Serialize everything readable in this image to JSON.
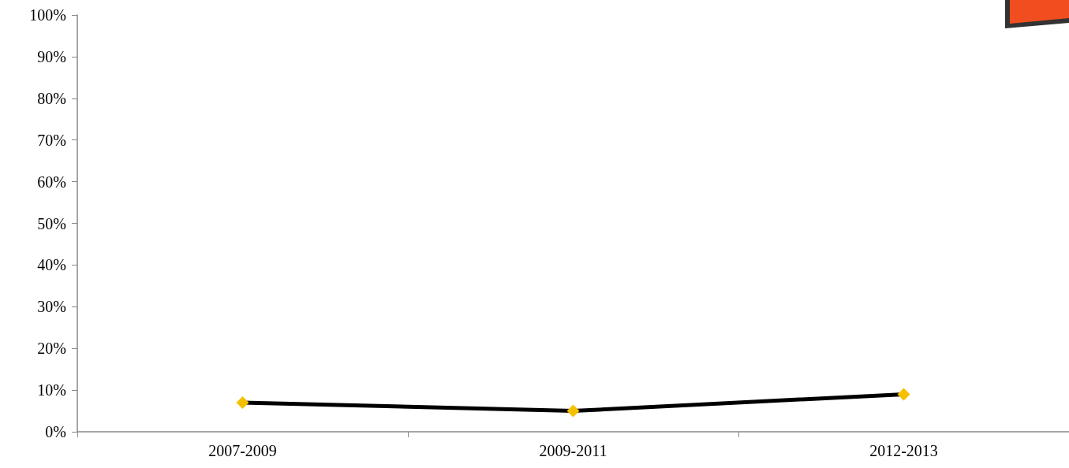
{
  "chart_data": {
    "type": "line",
    "categories": [
      "2007-2009",
      "2009-2011",
      "2012-2013"
    ],
    "series": [
      {
        "color": "#000000",
        "colors": [
          "#f5c000",
          "#f5c000",
          "#f5c000"
        ],
        "values": [
          7,
          5,
          9
        ]
      }
    ],
    "ylim": [
      0,
      100
    ],
    "yticks": [
      {
        "value": 0,
        "label": "0%"
      },
      {
        "value": 10,
        "label": "10%"
      },
      {
        "value": 20,
        "label": "20%"
      },
      {
        "value": 30,
        "label": "30%"
      },
      {
        "value": 40,
        "label": "40%"
      },
      {
        "value": 50,
        "label": "50%"
      },
      {
        "value": 60,
        "label": "60%"
      },
      {
        "value": 70,
        "label": "70%"
      },
      {
        "value": 80,
        "label": "80%"
      },
      {
        "value": 90,
        "label": "90%"
      },
      {
        "value": 100,
        "label": "100%"
      }
    ],
    "marker": "diamond",
    "grid": false
  }
}
